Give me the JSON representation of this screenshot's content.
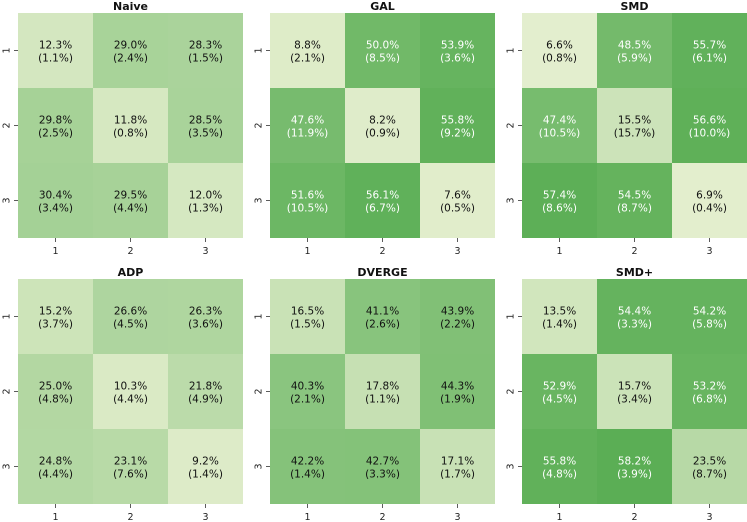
{
  "chart_data": [
    {
      "type": "heatmap",
      "title": "Naive",
      "row_labels": [
        "1",
        "2",
        "3"
      ],
      "col_labels": [
        "1",
        "2",
        "3"
      ],
      "values": [
        [
          12.3,
          29.0,
          28.3
        ],
        [
          29.8,
          11.8,
          28.5
        ],
        [
          30.4,
          29.5,
          12.0
        ]
      ],
      "std": [
        [
          1.1,
          2.4,
          1.5
        ],
        [
          2.5,
          0.8,
          3.5
        ],
        [
          3.4,
          4.4,
          1.3
        ]
      ]
    },
    {
      "type": "heatmap",
      "title": "GAL",
      "row_labels": [
        "1",
        "2",
        "3"
      ],
      "col_labels": [
        "1",
        "2",
        "3"
      ],
      "values": [
        [
          8.8,
          50.0,
          53.9
        ],
        [
          47.6,
          8.2,
          55.8
        ],
        [
          51.6,
          56.1,
          7.6
        ]
      ],
      "std": [
        [
          2.1,
          8.5,
          3.6
        ],
        [
          11.9,
          0.9,
          9.2
        ],
        [
          10.5,
          6.7,
          0.5
        ]
      ]
    },
    {
      "type": "heatmap",
      "title": "SMD",
      "row_labels": [
        "1",
        "2",
        "3"
      ],
      "col_labels": [
        "1",
        "2",
        "3"
      ],
      "values": [
        [
          6.6,
          48.5,
          55.7
        ],
        [
          47.4,
          15.5,
          56.6
        ],
        [
          57.4,
          54.5,
          6.9
        ]
      ],
      "std": [
        [
          0.8,
          5.9,
          6.1
        ],
        [
          10.5,
          15.7,
          10.0
        ],
        [
          8.6,
          8.7,
          0.4
        ]
      ]
    },
    {
      "type": "heatmap",
      "title": "ADP",
      "row_labels": [
        "1",
        "2",
        "3"
      ],
      "col_labels": [
        "1",
        "2",
        "3"
      ],
      "values": [
        [
          15.2,
          26.6,
          26.3
        ],
        [
          25.0,
          10.3,
          21.8
        ],
        [
          24.8,
          23.1,
          9.2
        ]
      ],
      "std": [
        [
          3.7,
          4.5,
          3.6
        ],
        [
          4.8,
          4.4,
          4.9
        ],
        [
          4.4,
          7.6,
          1.4
        ]
      ]
    },
    {
      "type": "heatmap",
      "title": "DVERGE",
      "row_labels": [
        "1",
        "2",
        "3"
      ],
      "col_labels": [
        "1",
        "2",
        "3"
      ],
      "values": [
        [
          16.5,
          41.1,
          43.9
        ],
        [
          40.3,
          17.8,
          44.3
        ],
        [
          42.2,
          42.7,
          17.1
        ]
      ],
      "std": [
        [
          1.5,
          2.6,
          2.2
        ],
        [
          2.1,
          1.1,
          1.9
        ],
        [
          1.4,
          3.3,
          1.7
        ]
      ]
    },
    {
      "type": "heatmap",
      "title": "SMD+",
      "row_labels": [
        "1",
        "2",
        "3"
      ],
      "col_labels": [
        "1",
        "2",
        "3"
      ],
      "values": [
        [
          13.5,
          54.4,
          54.2
        ],
        [
          52.9,
          15.7,
          53.2
        ],
        [
          55.8,
          58.2,
          23.5
        ]
      ],
      "std": [
        [
          1.4,
          3.3,
          5.8
        ],
        [
          4.5,
          3.4,
          6.8
        ],
        [
          4.8,
          3.9,
          8.7
        ]
      ]
    }
  ],
  "colors": {
    "low": "#e5efcf",
    "high": "#5aae54",
    "text_dark": "#111111",
    "text_light": "#ffffff"
  },
  "color_scale": {
    "vmin": 6.0,
    "vmax": 58.5,
    "light_text_threshold": 46.0
  }
}
